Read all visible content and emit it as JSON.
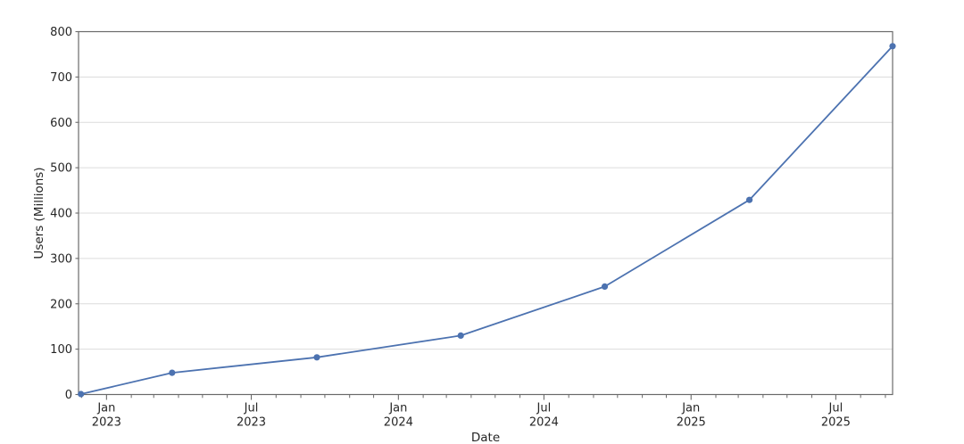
{
  "chart_data": {
    "type": "line",
    "xlabel": "Date",
    "ylabel": "Users (Millions)",
    "grid": "horizontal",
    "legend": "none",
    "x_range": [
      "2022-11-27",
      "2025-09-10"
    ],
    "y_range": [
      0,
      800
    ],
    "y_ticks": [
      {
        "value": 0,
        "label": "0"
      },
      {
        "value": 100,
        "label": "100"
      },
      {
        "value": 200,
        "label": "200"
      },
      {
        "value": 300,
        "label": "300"
      },
      {
        "value": 400,
        "label": "400"
      },
      {
        "value": 500,
        "label": "500"
      },
      {
        "value": 600,
        "label": "600"
      },
      {
        "value": 700,
        "label": "700"
      },
      {
        "value": 800,
        "label": "800"
      }
    ],
    "x_major_ticks": [
      {
        "date": "2023-01-01",
        "line1": "Jan",
        "line2": "2023"
      },
      {
        "date": "2023-07-01",
        "line1": "Jul",
        "line2": "2023"
      },
      {
        "date": "2024-01-01",
        "line1": "Jan",
        "line2": "2024"
      },
      {
        "date": "2024-07-01",
        "line1": "Jul",
        "line2": "2024"
      },
      {
        "date": "2025-01-01",
        "line1": "Jan",
        "line2": "2025"
      },
      {
        "date": "2025-07-01",
        "line1": "Jul",
        "line2": "2025"
      }
    ],
    "x_minor_tick_interval": "month",
    "series": [
      {
        "name": "Users",
        "marker": "circle",
        "color": "#4c72b0",
        "points": [
          {
            "date": "2022-11-30",
            "value": 1
          },
          {
            "date": "2023-03-24",
            "value": 48
          },
          {
            "date": "2023-09-21",
            "value": 82
          },
          {
            "date": "2024-03-19",
            "value": 130
          },
          {
            "date": "2024-09-15",
            "value": 238
          },
          {
            "date": "2025-03-15",
            "value": 429
          },
          {
            "date": "2025-09-10",
            "value": 768
          }
        ]
      }
    ],
    "colors": {
      "line": "#4c72b0",
      "grid": "#dcdcdc",
      "spine": "#6a6a6a",
      "text": "#262626",
      "background": "#ffffff"
    }
  }
}
